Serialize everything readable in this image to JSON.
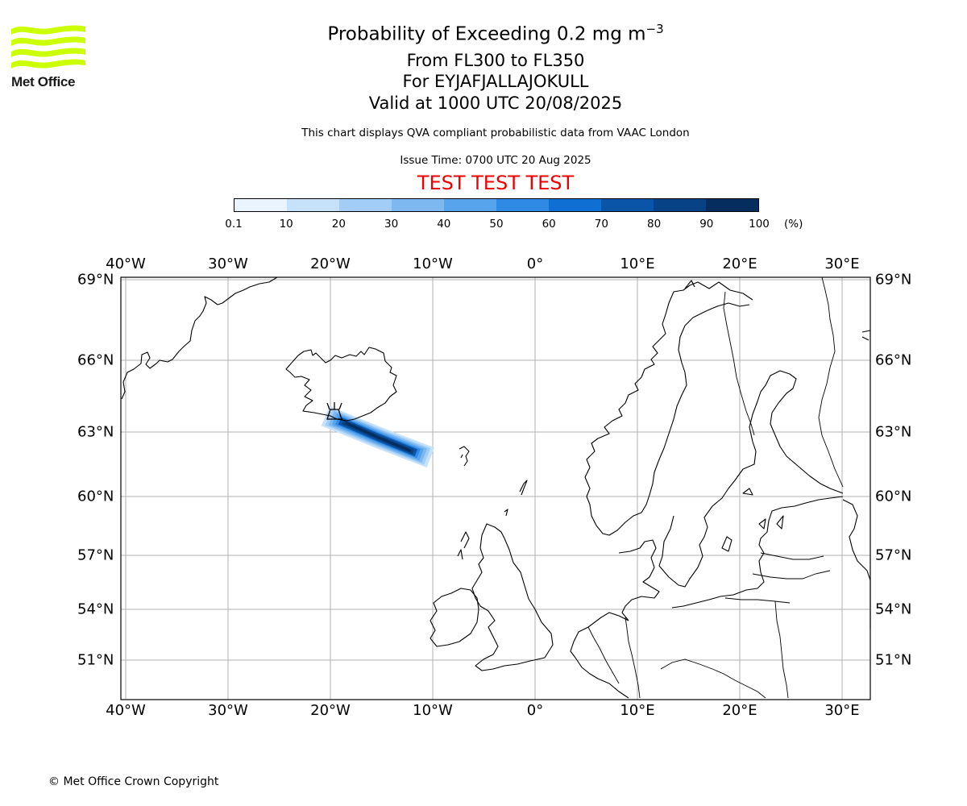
{
  "logo": {
    "text": "Met Office",
    "color": "#ccff00"
  },
  "title": {
    "line1": "Probability of Exceeding 0.2 mg m",
    "line1_sup": "−3",
    "line2": "From FL300 to FL350",
    "line3": "For EYJAFJALLAJOKULL",
    "line4": "Valid at 1000 UTC 20/08/2025",
    "subtitle": "This chart displays QVA compliant probabilistic data from VAAC London",
    "issue_time": "Issue Time: 0700 UTC 20 Aug 2025",
    "test_banner": "TEST TEST TEST"
  },
  "colorbar": {
    "ticks": [
      "0.1",
      "10",
      "20",
      "30",
      "40",
      "50",
      "60",
      "70",
      "80",
      "90",
      "100"
    ],
    "unit": "(%)",
    "colors": [
      "#eaf4ff",
      "#c6e2fb",
      "#a2cdf6",
      "#7db8f1",
      "#58a4ec",
      "#2f8ae6",
      "#0f6fd2",
      "#0a55a8",
      "#074286",
      "#052d5e"
    ]
  },
  "map": {
    "lon_labels": [
      "40°W",
      "30°W",
      "20°W",
      "10°W",
      "0°",
      "10°E",
      "20°E",
      "30°E"
    ],
    "lat_labels": [
      "69°N",
      "66°N",
      "63°N",
      "60°N",
      "57°N",
      "54°N",
      "51°N"
    ],
    "volcano_marker": "volcano-icon",
    "plume_core_probability_band": "90-100"
  },
  "copyright": "© Met Office Crown Copyright"
}
